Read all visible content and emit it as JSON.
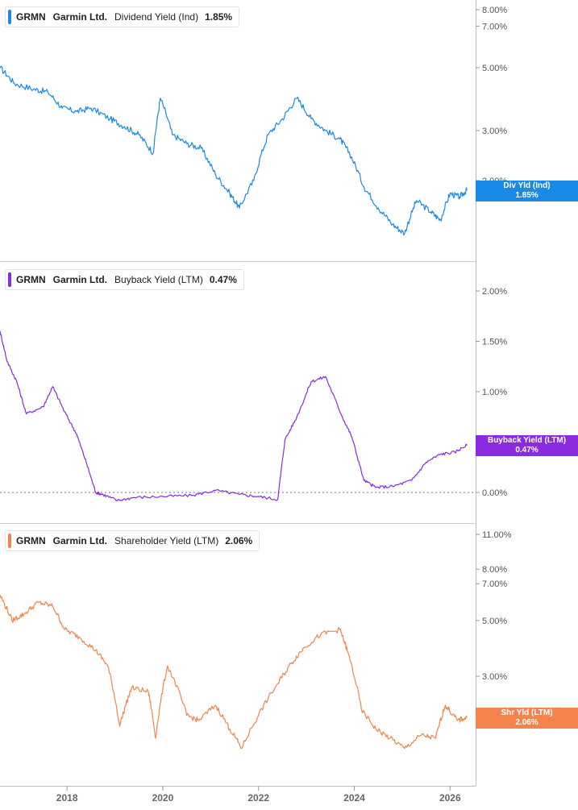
{
  "panels": [
    {
      "ticker": "GRMN",
      "company": "Garmin Ltd.",
      "metric": "Dividend Yield (Ind)",
      "value": "1.85%",
      "flag_label": "Div Yld (Ind)",
      "flag_value": "1.85%",
      "color": "#1a8ae6"
    },
    {
      "ticker": "GRMN",
      "company": "Garmin Ltd.",
      "metric": "Buyback Yield (LTM)",
      "value": "0.47%",
      "flag_label": "Buyback Yield (LTM)",
      "flag_value": "0.47%",
      "color": "#8a2be2"
    },
    {
      "ticker": "GRMN",
      "company": "Garmin Ltd.",
      "metric": "Shareholder Yield (LTM)",
      "value": "2.06%",
      "flag_label": "Shr Yld (LTM)",
      "flag_value": "2.06%",
      "color": "#f5844c"
    }
  ],
  "chart_data": [
    {
      "type": "line",
      "series": [
        {
          "name": "Dividend Yield (Ind)",
          "color": "#1a8ae6"
        }
      ],
      "x": [
        2016.6,
        2016.9,
        2017.3,
        2017.6,
        2017.9,
        2018.2,
        2018.5,
        2018.9,
        2019.2,
        2019.5,
        2019.8,
        2019.95,
        2020.2,
        2020.5,
        2020.8,
        2021.1,
        2021.4,
        2021.6,
        2021.9,
        2022.2,
        2022.5,
        2022.8,
        2023.1,
        2023.4,
        2023.7,
        2023.9,
        2024.2,
        2024.5,
        2024.8,
        2025.05,
        2025.3,
        2025.6,
        2025.8,
        2026.0,
        2026.2,
        2026.35
      ],
      "y": [
        5.0,
        4.4,
        4.2,
        4.1,
        3.6,
        3.5,
        3.6,
        3.3,
        3.1,
        2.9,
        2.5,
        3.9,
        2.9,
        2.7,
        2.6,
        2.1,
        1.8,
        1.6,
        2.0,
        2.9,
        3.3,
        3.9,
        3.3,
        3.0,
        2.8,
        2.5,
        1.9,
        1.6,
        1.4,
        1.3,
        1.7,
        1.55,
        1.45,
        1.8,
        1.75,
        1.85
      ],
      "yticks": [
        "8.00%",
        "7.00%",
        "5.00%",
        "3.00%",
        "2.00%"
      ],
      "ytick_values": [
        8,
        7,
        5,
        3,
        2
      ],
      "scale": "log"
    },
    {
      "type": "line",
      "series": [
        {
          "name": "Buyback Yield (LTM)",
          "color": "#8a2be2"
        }
      ],
      "x": [
        2016.6,
        2016.75,
        2016.95,
        2017.15,
        2017.5,
        2017.7,
        2017.95,
        2018.2,
        2018.4,
        2018.6,
        2018.75,
        2019.05,
        2019.4,
        2020.0,
        2020.6,
        2021.1,
        2021.6,
        2022.0,
        2022.4,
        2022.55,
        2022.8,
        2023.1,
        2023.4,
        2023.75,
        2023.95,
        2024.2,
        2024.45,
        2024.8,
        2025.2,
        2025.5,
        2025.8,
        2026.1,
        2026.35
      ],
      "y": [
        1.6,
        1.3,
        1.1,
        0.78,
        0.85,
        1.05,
        0.8,
        0.58,
        0.3,
        0.0,
        -0.02,
        -0.08,
        -0.05,
        -0.04,
        -0.03,
        0.02,
        -0.02,
        -0.04,
        -0.07,
        0.52,
        0.75,
        1.1,
        1.15,
        0.75,
        0.55,
        0.12,
        0.05,
        0.06,
        0.12,
        0.3,
        0.38,
        0.4,
        0.47
      ],
      "yticks": [
        "2.00%",
        "1.50%",
        "1.00%",
        "0.00%"
      ],
      "ytick_values": [
        2.0,
        1.5,
        1.0,
        0.0
      ],
      "zero_line": true
    },
    {
      "type": "line",
      "series": [
        {
          "name": "Shareholder Yield (LTM)",
          "color": "#f5844c"
        }
      ],
      "x": [
        2016.6,
        2016.85,
        2017.1,
        2017.4,
        2017.7,
        2017.95,
        2018.25,
        2018.6,
        2018.85,
        2019.1,
        2019.35,
        2019.7,
        2019.85,
        2020.1,
        2020.5,
        2020.75,
        2021.1,
        2021.4,
        2021.65,
        2022.0,
        2022.4,
        2022.7,
        2022.95,
        2023.3,
        2023.7,
        2023.85,
        2024.15,
        2024.45,
        2024.75,
        2025.05,
        2025.4,
        2025.7,
        2025.9,
        2026.15,
        2026.35
      ],
      "y": [
        6.3,
        5.0,
        5.3,
        5.9,
        5.7,
        4.6,
        4.3,
        3.8,
        3.3,
        1.9,
        2.7,
        2.6,
        1.7,
        3.3,
        2.1,
        2.0,
        2.3,
        1.85,
        1.55,
        2.1,
        2.8,
        3.4,
        3.9,
        4.4,
        4.6,
        3.8,
        2.2,
        1.85,
        1.7,
        1.55,
        1.75,
        1.7,
        2.3,
        2.0,
        2.06
      ],
      "yticks": [
        "11.00%",
        "8.00%",
        "7.00%",
        "5.00%",
        "3.00%",
        "2.00%"
      ],
      "ytick_values": [
        11,
        8,
        7,
        5,
        3,
        2
      ],
      "scale": "log"
    }
  ],
  "x_axis": {
    "ticks": [
      "2018",
      "2020",
      "2022",
      "2024",
      "2026"
    ],
    "tick_values": [
      2018,
      2020,
      2022,
      2024,
      2026
    ]
  }
}
